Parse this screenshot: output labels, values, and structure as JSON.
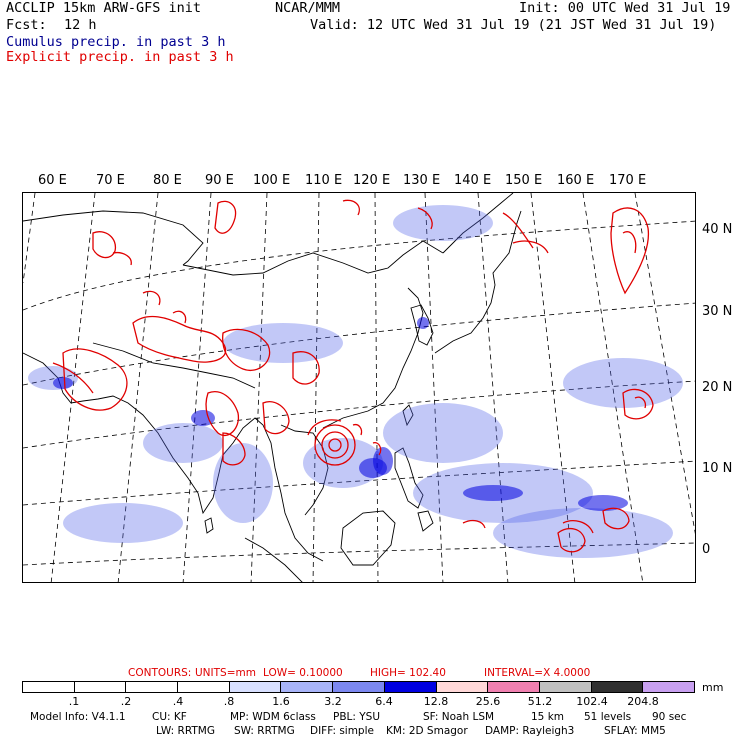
{
  "header": {
    "title": "ACCLIP 15km ARW-GFS init",
    "org": "NCAR/MMM",
    "init": "Init: 00 UTC Wed 31 Jul 19",
    "fcst_label": "Fcst:",
    "fcst_value": "12 h",
    "valid": "Valid: 12 UTC Wed 31 Jul 19 (21 JST Wed 31 Jul 19)",
    "cumulus": "Cumulus precip. in past 3 h",
    "explicit": "Explicit precip. in past 3 h"
  },
  "map": {
    "lon_labels": [
      "60 E",
      "70 E",
      "80 E",
      "90 E",
      "100 E",
      "110 E",
      "120 E",
      "130 E",
      "140 E",
      "150 E",
      "160 E",
      "170 E"
    ],
    "lat_labels": [
      "40 N",
      "30 N",
      "20 N",
      "10 N",
      "0"
    ],
    "colors": {
      "cumulus": "#2020e0",
      "explicit": "#e00000",
      "coast": "#000000",
      "grid": "#000000"
    }
  },
  "contours": {
    "label": "CONTOURS:",
    "units": "UNITS=mm",
    "low": "LOW= 0.10000",
    "high": "HIGH= 102.40",
    "interval": "INTERVAL=X 4.0000"
  },
  "colorbar": {
    "unit": "mm",
    "ticks": [
      ".1",
      ".2",
      ".4",
      ".8",
      "1.6",
      "3.2",
      "6.4",
      "12.8",
      "25.6",
      "51.2",
      "102.4",
      "204.8"
    ],
    "colors": [
      "#ffffff",
      "#ffffff",
      "#ffffff",
      "#ffffff",
      "#d8e0ff",
      "#a8b4f8",
      "#7c88f0",
      "#0000e0",
      "#ffd8d8",
      "#f080b0",
      "#c0c0c0",
      "#303030",
      "#c8a0f0"
    ]
  },
  "footer": {
    "line1": [
      "Model Info: V4.1.1",
      "CU: KF",
      "MP: WDM 6class",
      "PBL: YSU",
      "SF: Noah LSM",
      "15 km",
      "51 levels",
      "90 sec"
    ],
    "line2": [
      "LW: RRTMG",
      "SW: RRTMG",
      "DIFF: simple",
      "KM: 2D Smagor",
      "DAMP: Rayleigh3",
      "SFLAY: MM5"
    ]
  }
}
